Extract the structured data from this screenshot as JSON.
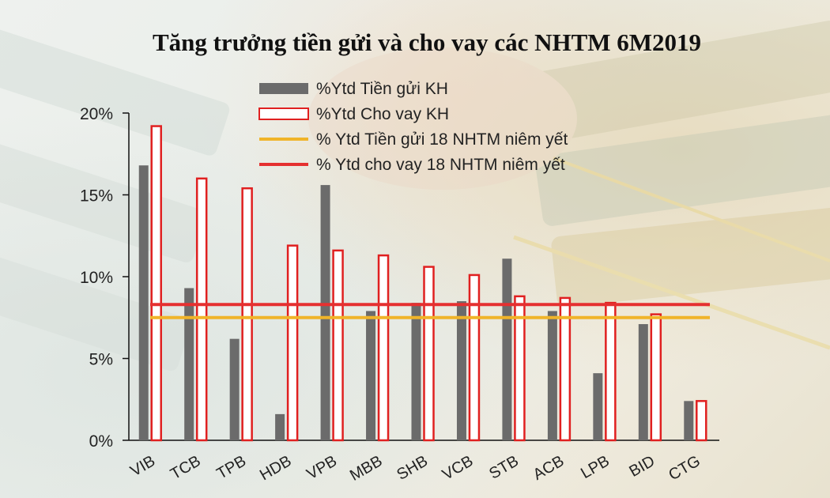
{
  "chart_data": {
    "type": "bar",
    "title": "Tăng trưởng tiền gửi và cho vay các NHTM 6M2019",
    "xlabel": "",
    "ylabel": "",
    "categories": [
      "VIB",
      "TCB",
      "TPB",
      "HDB",
      "VPB",
      "MBB",
      "SHB",
      "VCB",
      "STB",
      "ACB",
      "LPB",
      "BID",
      "CTG"
    ],
    "series": [
      {
        "name": "%Ytd Tiền gửi KH",
        "kind": "bar",
        "color": "#6b6b6b",
        "values": [
          16.8,
          9.3,
          6.2,
          1.6,
          15.6,
          7.9,
          8.4,
          8.5,
          11.1,
          7.9,
          4.1,
          7.1,
          2.4
        ]
      },
      {
        "name": "%Ytd Cho vay KH",
        "kind": "bar",
        "color": "#ffffff",
        "stroke": "#e02020",
        "values": [
          19.2,
          16.0,
          15.4,
          11.9,
          11.6,
          11.3,
          10.6,
          10.1,
          8.8,
          8.7,
          8.4,
          7.7,
          2.4
        ]
      },
      {
        "name": "% Ytd Tiền gửi 18 NHTM niêm yết",
        "kind": "hline",
        "color": "#f0b429",
        "value": 7.5
      },
      {
        "name": "% Ytd cho vay 18 NHTM niêm yết",
        "kind": "hline",
        "color": "#e53030",
        "value": 8.3
      }
    ],
    "ylim": [
      0,
      20
    ],
    "yticks": [
      "0%",
      "5%",
      "10%",
      "15%",
      "20%"
    ],
    "grid": false,
    "legend": "top-center"
  }
}
